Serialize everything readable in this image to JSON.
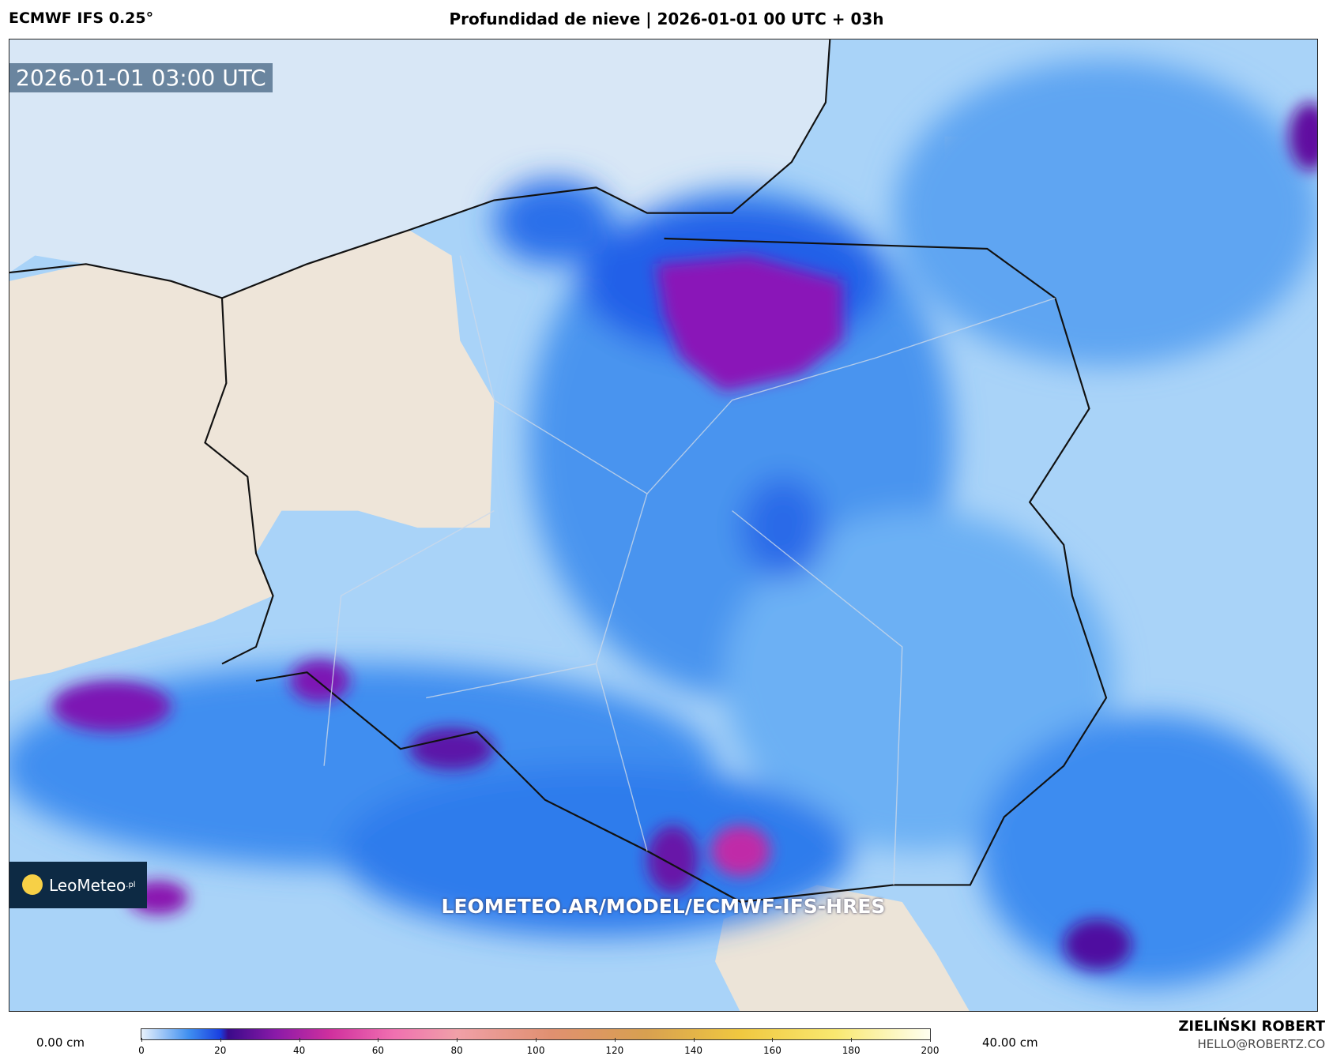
{
  "header": {
    "model": "ECMWF IFS 0.25°",
    "title": "Profundidad de nieve | 2026-01-01 00 UTC + 03h"
  },
  "map": {
    "timestamp": "2026-01-01 03:00 UTC",
    "watermark": "LEOMETEO.AR/MODEL/ECMWF-IFS-HRES",
    "logo": "LeoMeteo",
    "logo_suffix": ".pl"
  },
  "colorbar": {
    "min_label": "0.00 cm",
    "max_label": "40.00 cm",
    "ticks": [
      0,
      20,
      40,
      60,
      80,
      100,
      120,
      140,
      160,
      180,
      200
    ]
  },
  "footer": {
    "author": "ZIELIŃSKI ROBERT",
    "email": "HELLO@ROBERTZ.CO"
  }
}
